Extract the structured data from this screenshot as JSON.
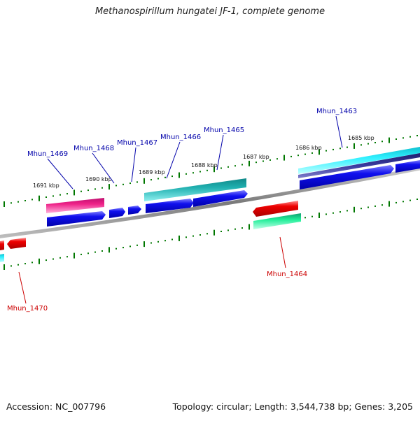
{
  "title": "Methanospirillum hungatei JF-1, complete genome",
  "footer": {
    "accession": "Accession: NC_007796",
    "summary": "Topology: circular; Length: 3,544,738 bp; Genes: 3,205"
  },
  "scale_ticks": [
    {
      "id": "1691",
      "label": "1691 kbp"
    },
    {
      "id": "1690",
      "label": "1690 kbp"
    },
    {
      "id": "1689",
      "label": "1689 kbp"
    },
    {
      "id": "1688",
      "label": "1688 kbp"
    },
    {
      "id": "1687",
      "label": "1687 kbp"
    },
    {
      "id": "1686",
      "label": "1686 kbp"
    },
    {
      "id": "1685",
      "label": "1685 kbp"
    }
  ],
  "gene_labels": {
    "mhun_1469": "Mhun_1469",
    "mhun_1468": "Mhun_1468",
    "mhun_1467": "Mhun_1467",
    "mhun_1466": "Mhun_1466",
    "mhun_1465": "Mhun_1465",
    "mhun_1463": "Mhun_1463",
    "mhun_1464": "Mhun_1464",
    "mhun_1470": "Mhun_1470"
  },
  "colors": {
    "forward_label": "#0000aa",
    "reverse_label": "#cc0000",
    "tick": "#007700",
    "backbone": "#8c8c8c",
    "cds": "#0000ee",
    "pink_feature": "#ee2288",
    "teal_feature": "#20a8a8",
    "cyan_feature": "#22e8f0",
    "red_feature": "#ee0000",
    "green_feature": "#22ee99",
    "navy_feature": "#333399"
  }
}
